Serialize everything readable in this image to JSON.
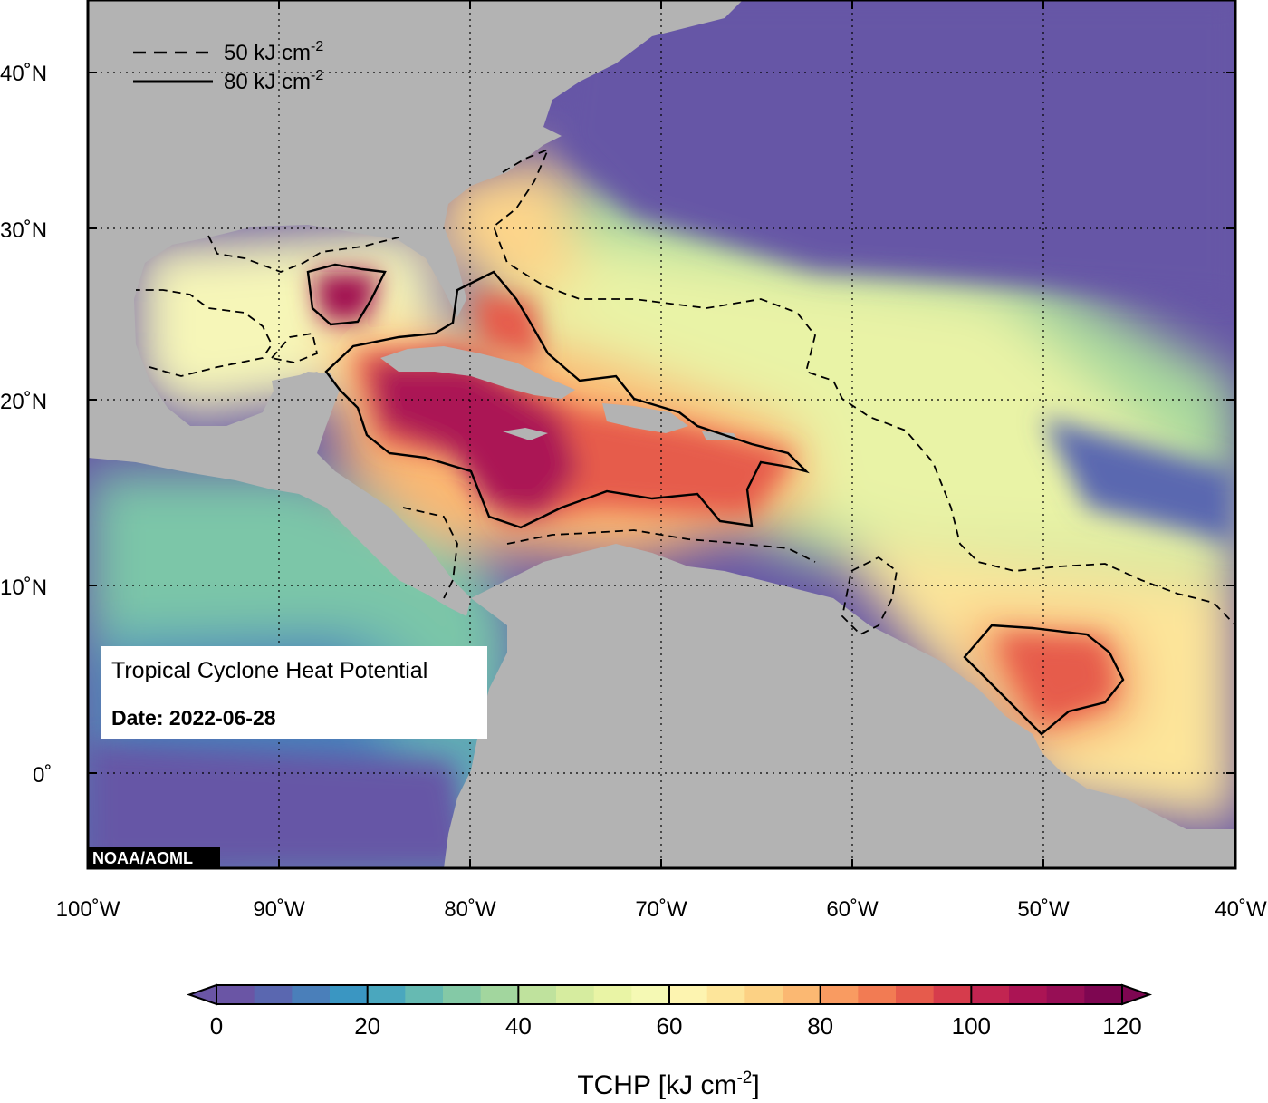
{
  "title_box": {
    "title": "Tropical Cyclone Heat Potential",
    "date": "Date: 2022-06-28"
  },
  "credit": "NOAA/AOML",
  "contour_legend": [
    {
      "label": "50 kJ cm",
      "sup": "-2",
      "style": "dashed",
      "value": 50
    },
    {
      "label": "80 kJ cm",
      "sup": "-2",
      "style": "solid",
      "value": 80
    }
  ],
  "axes": {
    "longitude_labels": [
      "100˚W",
      "90˚W",
      "80˚W",
      "70˚W",
      "60˚W",
      "50˚W",
      "40˚W"
    ],
    "latitude_labels": [
      "40˚N",
      "30˚N",
      "20˚N",
      "10˚N",
      "0˚"
    ],
    "lon_range": [
      -100,
      -40
    ],
    "lat_range": [
      -5,
      44
    ]
  },
  "colorbar": {
    "label": "TCHP [kJ cm",
    "label_sup": "-2",
    "label_end": "]",
    "min": 0,
    "max": 120,
    "step": 5,
    "tick_labels": [
      "0",
      "20",
      "40",
      "60",
      "80",
      "100",
      "120"
    ],
    "colors": [
      "#6a55a5",
      "#5a67b0",
      "#4a7fba",
      "#3a96c2",
      "#4aa7be",
      "#66bab2",
      "#84c9a6",
      "#a2d69e",
      "#bfe29d",
      "#d6ec9f",
      "#e9f4a5",
      "#f5f9b4",
      "#fdf4b0",
      "#fde59a",
      "#fcd184",
      "#fbb872",
      "#f99b61",
      "#f27b53",
      "#e65b4c",
      "#d63c4c",
      "#c22551",
      "#ab1454",
      "#970e55",
      "#7e0651"
    ],
    "colors_note": "land #b3b3b3"
  },
  "colors": {
    "land": "#b3b3b3",
    "cold_ocean": "#6656a6",
    "frame": "#000000",
    "grid": "#000000"
  }
}
